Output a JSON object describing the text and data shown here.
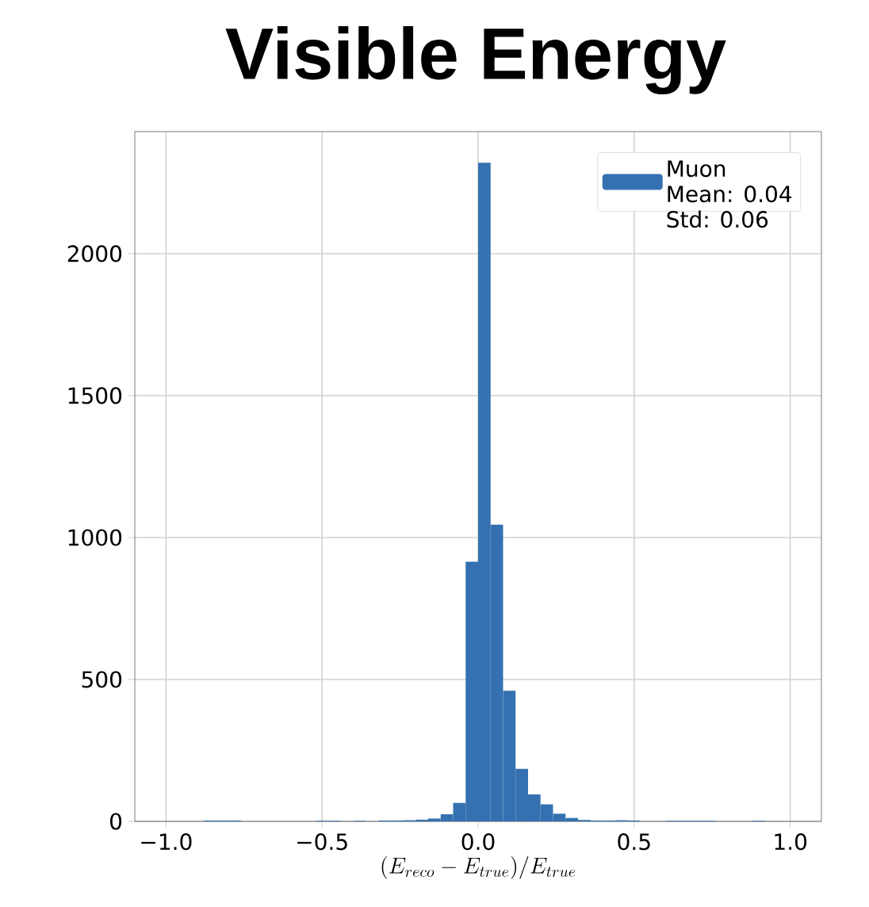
{
  "chart_data": {
    "type": "histogram",
    "title": "Visible Energy",
    "xlabel": "(E_{reco} - E_{true})/E_{true}",
    "bins": [
      -1.0,
      -0.96,
      -0.92,
      -0.88,
      -0.84,
      -0.8,
      -0.76,
      -0.72,
      -0.68,
      -0.64,
      -0.6,
      -0.56,
      -0.52,
      -0.48,
      -0.44,
      -0.4,
      -0.36,
      -0.32,
      -0.28,
      -0.24,
      -0.2,
      -0.16,
      -0.12,
      -0.08,
      -0.04,
      0.0,
      0.04,
      0.08,
      0.12,
      0.16,
      0.2,
      0.24,
      0.28,
      0.32,
      0.36,
      0.4,
      0.44,
      0.48,
      0.52,
      0.56,
      0.6,
      0.64,
      0.68,
      0.72,
      0.76,
      0.8,
      0.84,
      0.88,
      0.92,
      0.96,
      1.0
    ],
    "series": [
      {
        "name": "Muon",
        "color": "#3571b0",
        "values": [
          0,
          0,
          0,
          3,
          3,
          3,
          0,
          0,
          0,
          0,
          0,
          0,
          2,
          2,
          0,
          2,
          0,
          3,
          3,
          4,
          6,
          10,
          25,
          65,
          915,
          2320,
          1045,
          460,
          185,
          95,
          60,
          27,
          12,
          5,
          3,
          3,
          4,
          3,
          0,
          0,
          2,
          2,
          2,
          2,
          0,
          0,
          0,
          2,
          0,
          0
        ]
      }
    ],
    "annotations": [
      "Mean: 0.04",
      "Std: 0.06"
    ],
    "xlim": [
      -1.1,
      1.1
    ],
    "ylim": [
      0,
      2430
    ],
    "xticks": [
      {
        "value": -1.0,
        "label": "−1.0"
      },
      {
        "value": -0.5,
        "label": "−0.5"
      },
      {
        "value": 0.0,
        "label": "0.0"
      },
      {
        "value": 0.5,
        "label": "0.5"
      },
      {
        "value": 1.0,
        "label": "1.0"
      }
    ],
    "yticks": [
      0,
      500,
      1000,
      1500,
      2000
    ],
    "grid": true,
    "legend": "top right"
  }
}
